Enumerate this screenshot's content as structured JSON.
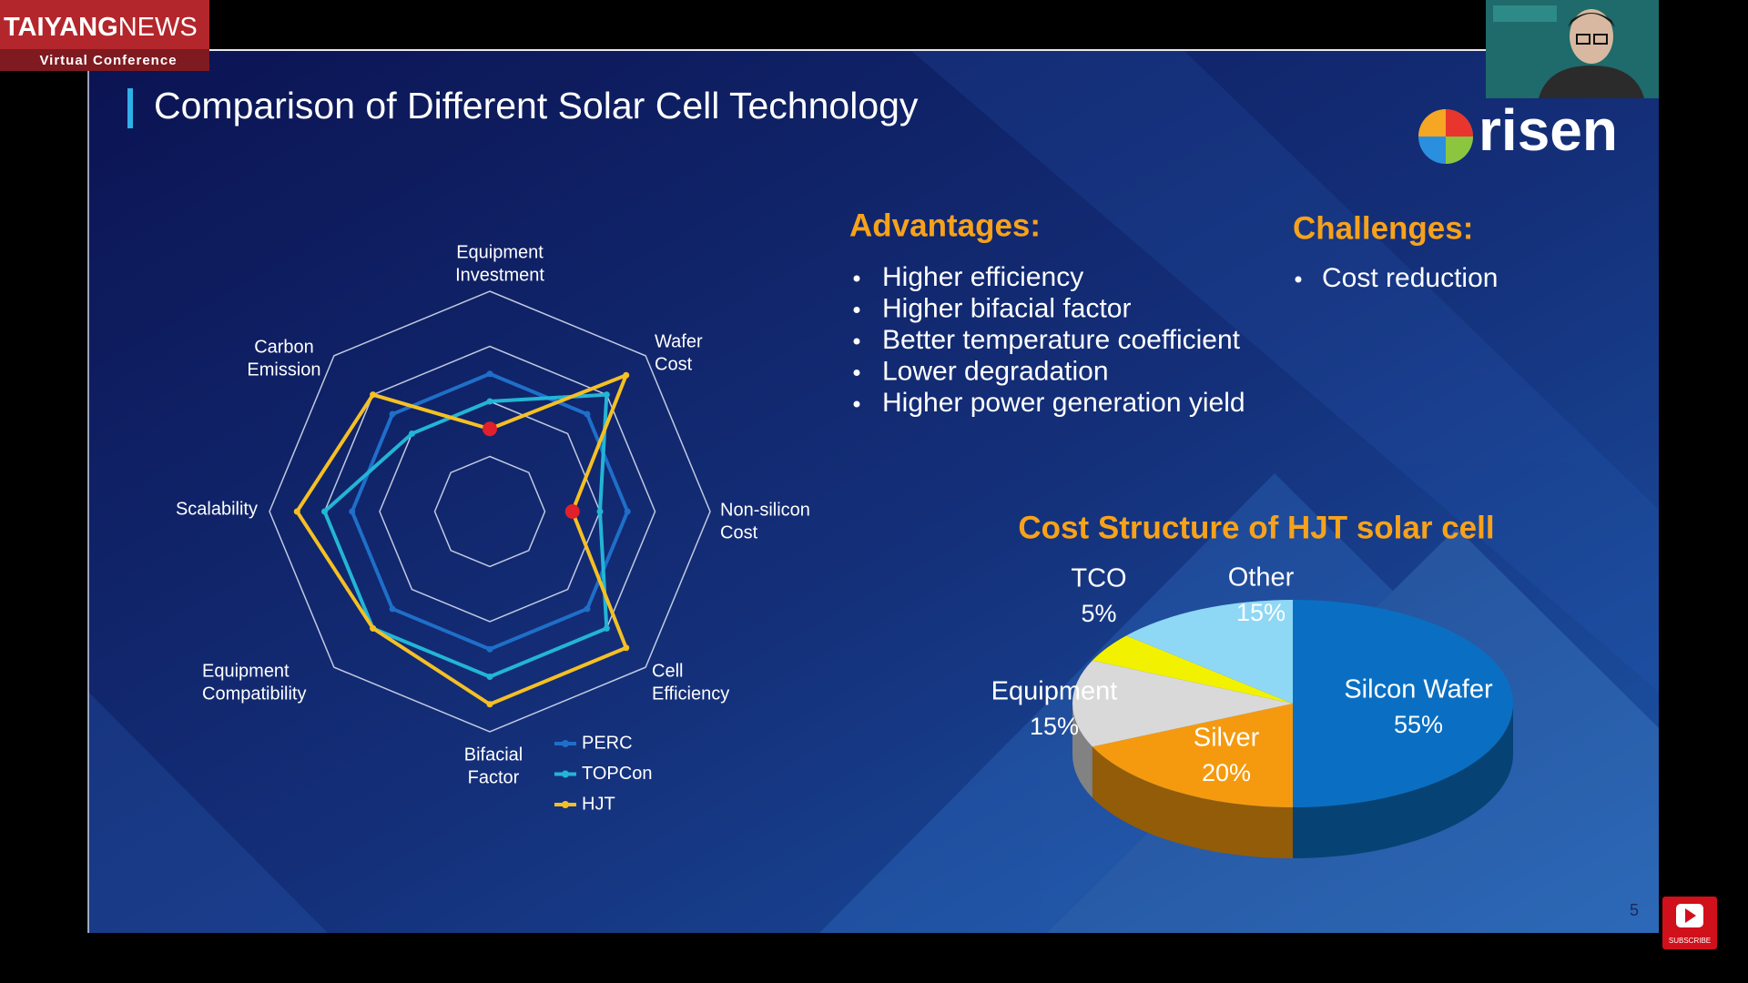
{
  "header": {
    "brand_bold": "TAIYANG",
    "brand_light": "NEWS",
    "subtitle": "Virtual Conference"
  },
  "slide": {
    "title": "Comparison of Different Solar Cell Technology",
    "logo": "risen",
    "advantages_title": "Advantages:",
    "advantages": [
      "Higher efficiency",
      "Higher bifacial factor",
      "Better temperature coefficient",
      "Lower degradation",
      "Higher power generation yield"
    ],
    "challenges_title": "Challenges:",
    "challenges": [
      "Cost reduction"
    ],
    "page_number": "5"
  },
  "subscribe": "SUBSCRIBE",
  "chart_data": [
    {
      "type": "radar",
      "axes": [
        [
          "Equipment",
          "Investment"
        ],
        [
          "Wafer",
          "Cost"
        ],
        [
          "Non-silicon",
          "Cost"
        ],
        [
          "Cell",
          "Efficiency"
        ],
        [
          "Bifacial",
          "Factor"
        ],
        [
          "Equipment",
          "Compatibility"
        ],
        [
          "Scalability"
        ],
        [
          "Carbon",
          "Emission"
        ]
      ],
      "rlim": [
        0,
        4
      ],
      "rticks": [
        1,
        2,
        3,
        4
      ],
      "legend": "bottom-right",
      "series": [
        {
          "name": "PERC",
          "color": "#1f6fc9",
          "values": [
            2.5,
            2.5,
            2.5,
            2.5,
            2.5,
            2.5,
            2.5,
            2.5
          ]
        },
        {
          "name": "TOPCon",
          "color": "#23b5d6",
          "values": [
            2,
            3,
            2,
            3,
            3,
            3,
            3,
            2
          ]
        },
        {
          "name": "HJT",
          "color": "#f5c024",
          "values": [
            1.5,
            3.5,
            1.5,
            3.5,
            3.5,
            3,
            3.5,
            3
          ]
        }
      ]
    },
    {
      "type": "pie",
      "title": "Cost Structure of HJT solar cell",
      "categories": [
        "Silcon Wafer",
        "Silver",
        "Equipment",
        "TCO",
        "Other"
      ],
      "values": [
        55,
        20,
        15,
        5,
        15
      ],
      "value_labels": [
        "55%",
        "20%",
        "15%",
        "5%",
        "15%"
      ],
      "colors": [
        "#0a6fc2",
        "#f59a0e",
        "#d9d9d9",
        "#f2f200",
        "#8fd8f5"
      ]
    }
  ]
}
